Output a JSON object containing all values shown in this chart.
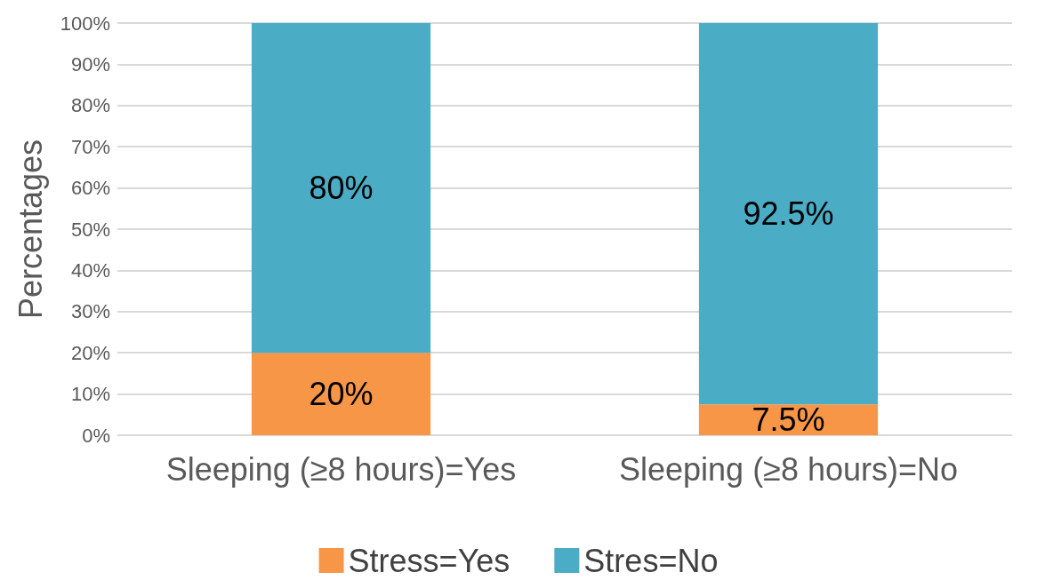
{
  "chart_data": {
    "type": "bar",
    "stacked": true,
    "ylabel": "Percentages",
    "categories": [
      "Sleeping (≥8 hours)=Yes",
      "Sleeping (≥8 hours)=No"
    ],
    "series": [
      {
        "name": "Stress=Yes",
        "color": "#f79646",
        "values": [
          20,
          7.5
        ],
        "value_labels": [
          "20%",
          "7.5%"
        ]
      },
      {
        "name": "Stres=No",
        "color": "#4bacc6",
        "values": [
          80,
          92.5
        ],
        "value_labels": [
          "80%",
          "92.5%"
        ]
      }
    ],
    "ylim": [
      0,
      100
    ],
    "yticks": [
      {
        "value": 0,
        "label": "0%"
      },
      {
        "value": 10,
        "label": "10%"
      },
      {
        "value": 20,
        "label": "20%"
      },
      {
        "value": 30,
        "label": "30%"
      },
      {
        "value": 40,
        "label": "40%"
      },
      {
        "value": 50,
        "label": "50%"
      },
      {
        "value": 60,
        "label": "60%"
      },
      {
        "value": 70,
        "label": "70%"
      },
      {
        "value": 80,
        "label": "80%"
      },
      {
        "value": 90,
        "label": "90%"
      },
      {
        "value": 100,
        "label": "100%"
      }
    ],
    "grid": "y",
    "legend": "bottom"
  }
}
